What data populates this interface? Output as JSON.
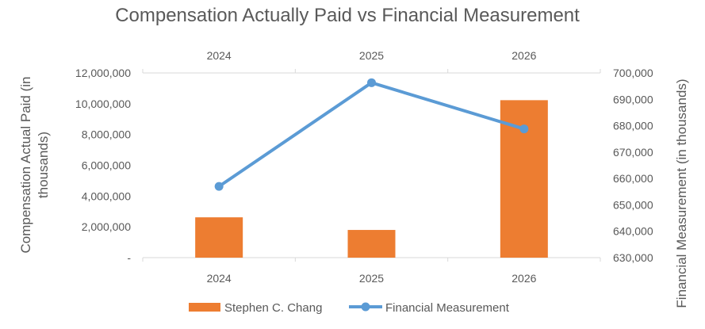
{
  "chart_data": {
    "type": "bar+line",
    "title": "Compensation Actually Paid vs Financial Measurement",
    "categories": [
      "2024",
      "2025",
      "2026"
    ],
    "top_axis_labels": [
      "2024",
      "2025",
      "2026"
    ],
    "series": [
      {
        "name": "Stephen C. Chang",
        "type": "bar",
        "axis": "left",
        "color": "#ED7D31",
        "values": [
          2620000,
          1800000,
          10230000
        ]
      },
      {
        "name": "Financial Measurement",
        "type": "line",
        "axis": "right",
        "color": "#5B9BD5",
        "values": [
          657000,
          696300,
          678800
        ]
      }
    ],
    "y_left": {
      "label_lines": [
        "Compensation Actual Paid (in",
        "thousands)"
      ],
      "ylim": [
        0,
        12000000
      ],
      "ticks": [
        "-",
        "2,000,000",
        "4,000,000",
        "6,000,000",
        "8,000,000",
        "10,000,000",
        "12,000,000"
      ]
    },
    "y_right": {
      "label": "Financial Measurement (in thousands)",
      "ylim": [
        630000,
        700000
      ],
      "ticks": [
        "630,000",
        "640,000",
        "650,000",
        "660,000",
        "670,000",
        "680,000",
        "690,000",
        "700,000"
      ]
    },
    "grid": false,
    "legend": "bottom"
  }
}
